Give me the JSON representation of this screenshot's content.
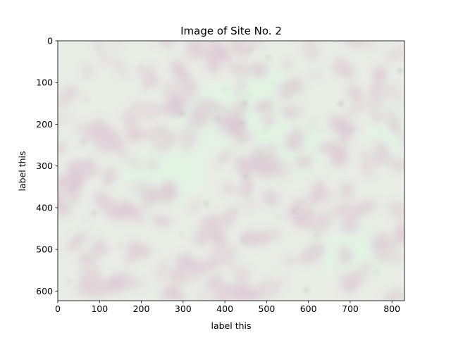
{
  "chart_data": {
    "type": "image",
    "title": "Image of Site No. 2",
    "xlabel": "label this",
    "ylabel": "label this",
    "xlim": [
      0,
      830
    ],
    "ylim": [
      623,
      0
    ],
    "x_ticks": [
      0,
      100,
      200,
      300,
      400,
      500,
      600,
      700,
      800
    ],
    "y_ticks": [
      0,
      100,
      200,
      300,
      400,
      500,
      600
    ],
    "grid": false,
    "legend": "none",
    "image": {
      "description_colors": {
        "background": "#e9ede6",
        "blob": "#dcc6d2",
        "highlight": "#e2f5e4",
        "speck": "#5a5a5a"
      }
    }
  }
}
